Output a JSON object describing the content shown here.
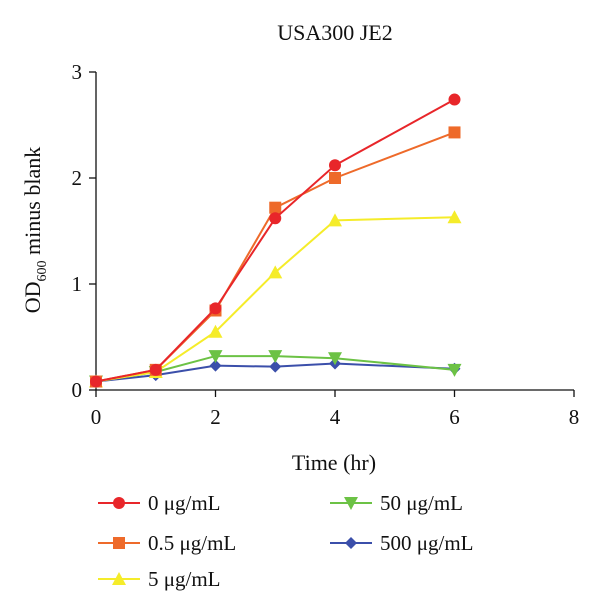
{
  "chart_data": {
    "type": "line",
    "title": "USA300 JE2",
    "xlabel": "Time (hr)",
    "ylabel": {
      "prefix": "OD",
      "subscript": "600",
      "suffix": " minus blank"
    },
    "xlim": [
      0,
      8
    ],
    "ylim": [
      0,
      3
    ],
    "xticks": [
      "0",
      "2",
      "4",
      "6",
      "8"
    ],
    "yticks": [
      "0",
      "1",
      "2",
      "3"
    ],
    "grid": false,
    "legend_position": "bottom",
    "series": [
      {
        "name": "0 μg/mL",
        "color": "#e8262a",
        "marker": "circle",
        "x": [
          0,
          1,
          2,
          3,
          4,
          6
        ],
        "y": [
          0.08,
          0.19,
          0.77,
          1.62,
          2.12,
          2.74
        ]
      },
      {
        "name": "0.5 μg/mL",
        "color": "#ee6a2a",
        "marker": "square",
        "x": [
          0,
          1,
          2,
          3,
          4,
          6
        ],
        "y": [
          0.08,
          0.19,
          0.75,
          1.72,
          2.0,
          2.43
        ]
      },
      {
        "name": "5 μg/mL",
        "color": "#f5ec2a",
        "marker": "triangle-up",
        "x": [
          0,
          1,
          2,
          3,
          4,
          6
        ],
        "y": [
          0.08,
          0.17,
          0.55,
          1.11,
          1.6,
          1.63
        ]
      },
      {
        "name": "50 μg/mL",
        "color": "#6cc245",
        "marker": "triangle-down",
        "x": [
          0,
          1,
          2,
          3,
          4,
          6
        ],
        "y": [
          0.08,
          0.17,
          0.32,
          0.32,
          0.3,
          0.19
        ]
      },
      {
        "name": "500 μg/mL",
        "color": "#3b4faa",
        "marker": "diamond",
        "x": [
          0,
          1,
          2,
          3,
          4,
          6
        ],
        "y": [
          0.08,
          0.14,
          0.23,
          0.22,
          0.25,
          0.2
        ]
      }
    ]
  }
}
